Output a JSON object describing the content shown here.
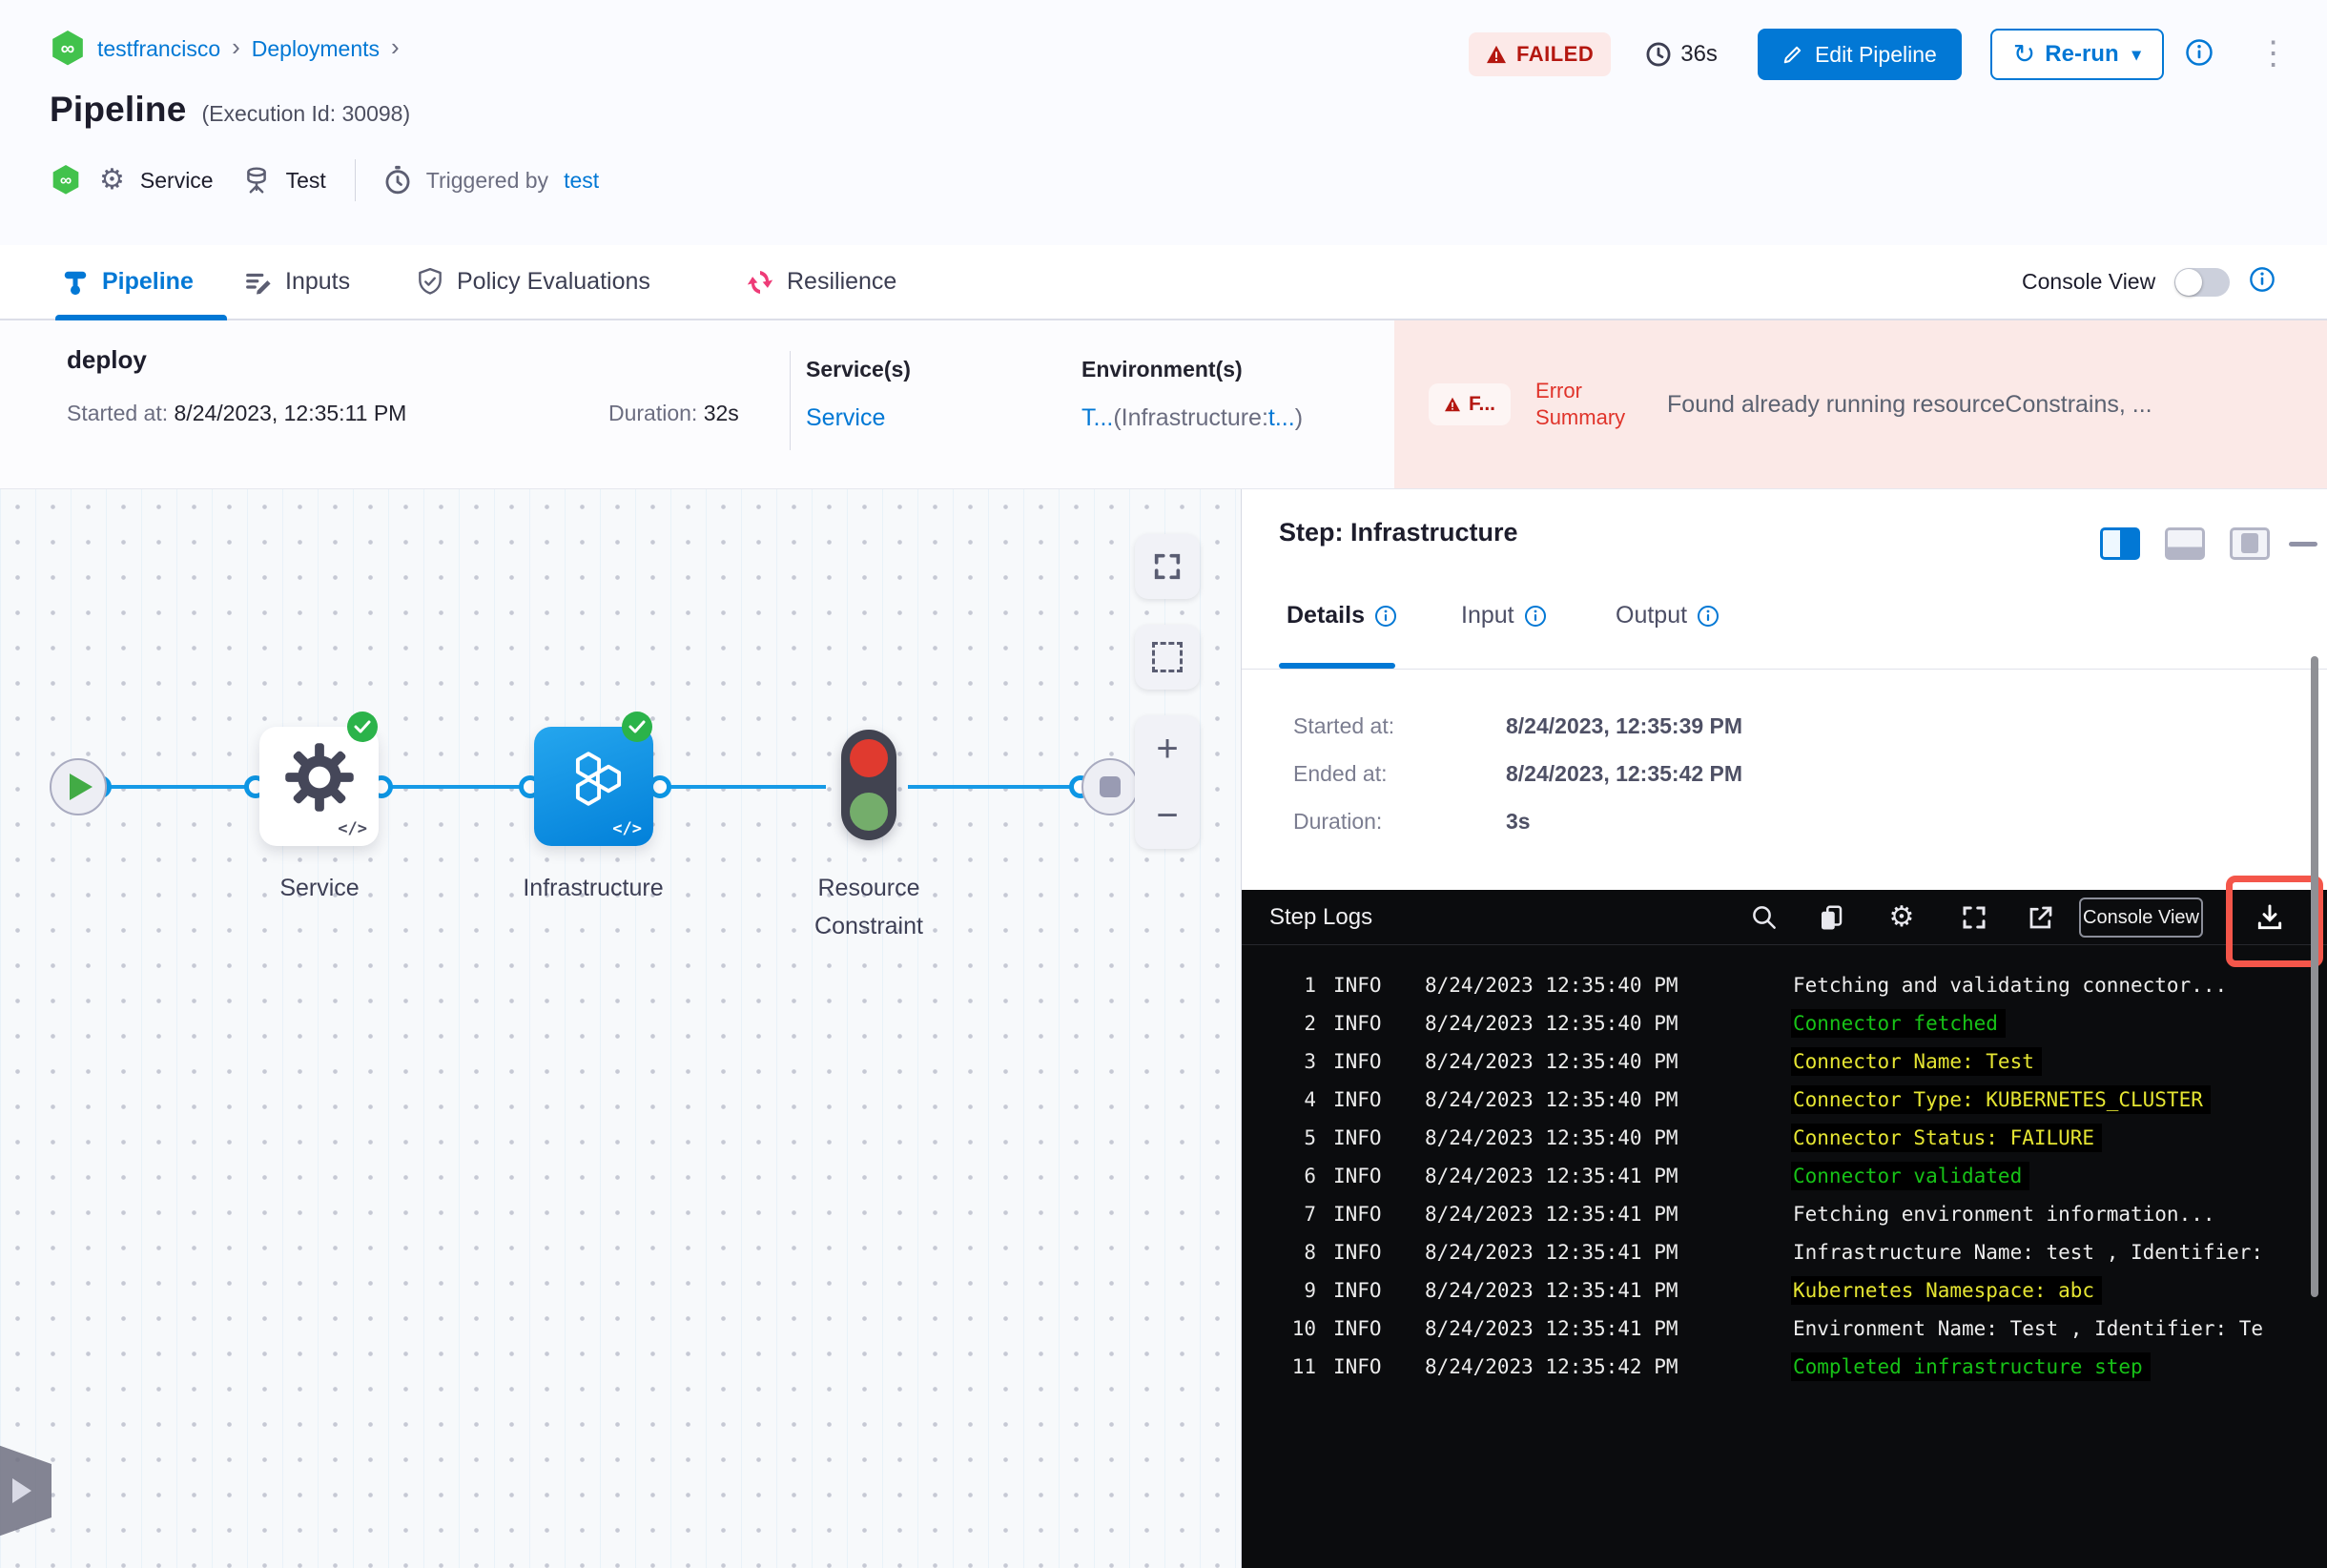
{
  "colors": {
    "accent": "#0278d5",
    "success": "#2bb34a",
    "failed_red": "#b41710",
    "error_band_bg": "#fbe9e7",
    "module_green": "#42c24c",
    "resilience_pink": "#ee3b77",
    "edge_blue": "#169ae6",
    "log_bg": "#0b0c0e",
    "log_yellow": "#e5e532",
    "log_green": "#17c217",
    "highlight_red": "#f4564a"
  },
  "icons": {
    "breadcrumb_chevron": "›",
    "caret_down": "▾",
    "kebab": "⋮",
    "refresh": "↻",
    "infinity": "∞",
    "code": "</>",
    "plus": "+",
    "minus": "−",
    "gear": "⚙"
  },
  "header": {
    "breadcrumb": {
      "project": "testfrancisco",
      "section": "Deployments"
    },
    "title": "Pipeline",
    "execution_id": "(Execution Id: 30098)",
    "status": "FAILED",
    "elapsed": "36s",
    "edit_button": "Edit Pipeline",
    "rerun_button": "Re-run",
    "meta": {
      "service_label": "Service",
      "environment_label": "Test",
      "triggered_by_label": "Triggered by",
      "triggered_by_value": "test"
    }
  },
  "tabs": {
    "pipeline": "Pipeline",
    "inputs": "Inputs",
    "policy": "Policy Evaluations",
    "resilience": "Resilience",
    "console_view_label": "Console View"
  },
  "stage_bar": {
    "name": "deploy",
    "started_label": "Started at: ",
    "started_value": "8/24/2023, 12:35:11 PM",
    "duration_label": "Duration: ",
    "duration_value": "32s",
    "services_label": "Service(s)",
    "services_value": "Service",
    "environments_label": "Environment(s)",
    "env_part1": "T...",
    "env_part2": "(Infrastructure:",
    "env_part3": "t...",
    "env_part4": ")",
    "error_chip": "F...",
    "error_label": "Error Summary",
    "error_message": "Found already running resourceConstrains, ..."
  },
  "graph": {
    "nodes": [
      {
        "label": "Service"
      },
      {
        "label": "Infrastructure"
      },
      {
        "label": "Resource Constraint"
      }
    ]
  },
  "step_panel": {
    "title": "Step: Infrastructure",
    "tab_details": "Details",
    "tab_input": "Input",
    "tab_output": "Output",
    "details": {
      "started_label": "Started at:",
      "started_value": "8/24/2023, 12:35:39 PM",
      "ended_label": "Ended at:",
      "ended_value": "8/24/2023, 12:35:42 PM",
      "duration_label": "Duration:",
      "duration_value": "3s"
    }
  },
  "logs": {
    "title": "Step Logs",
    "console_button": "Console View",
    "lines": [
      {
        "n": "1",
        "level": "INFO",
        "time": "8/24/2023 12:35:40 PM",
        "msg": "Fetching and validating connector...",
        "c": "w"
      },
      {
        "n": "2",
        "level": "INFO",
        "time": "8/24/2023 12:35:40 PM",
        "msg": "Connector fetched",
        "c": "g"
      },
      {
        "n": "3",
        "level": "INFO",
        "time": "8/24/2023 12:35:40 PM",
        "msg": "Connector Name: Test",
        "c": "y"
      },
      {
        "n": "4",
        "level": "INFO",
        "time": "8/24/2023 12:35:40 PM",
        "msg": "Connector Type: KUBERNETES_CLUSTER",
        "c": "y"
      },
      {
        "n": "5",
        "level": "INFO",
        "time": "8/24/2023 12:35:40 PM",
        "msg": "Connector Status: FAILURE",
        "c": "y"
      },
      {
        "n": "6",
        "level": "INFO",
        "time": "8/24/2023 12:35:41 PM",
        "msg": "Connector validated",
        "c": "g"
      },
      {
        "n": "7",
        "level": "INFO",
        "time": "8/24/2023 12:35:41 PM",
        "msg": "Fetching environment information...",
        "c": "w"
      },
      {
        "n": "8",
        "level": "INFO",
        "time": "8/24/2023 12:35:41 PM",
        "msg": "Infrastructure Name: test , Identifier:",
        "c": "w"
      },
      {
        "n": "9",
        "level": "INFO",
        "time": "8/24/2023 12:35:41 PM",
        "msg": "Kubernetes Namespace: abc",
        "c": "y"
      },
      {
        "n": "10",
        "level": "INFO",
        "time": "8/24/2023 12:35:41 PM",
        "msg": "Environment Name: Test , Identifier: Te",
        "c": "w"
      },
      {
        "n": "11",
        "level": "INFO",
        "time": "8/24/2023 12:35:42 PM",
        "msg": "Completed infrastructure step",
        "c": "g"
      }
    ]
  }
}
